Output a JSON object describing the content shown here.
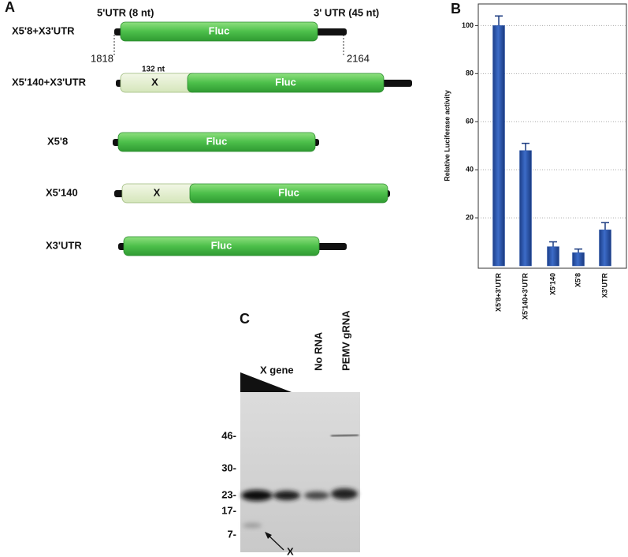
{
  "panel_a": {
    "letter": "A",
    "utr5": "5'UTR (8 nt)",
    "utr3": "3' UTR (45 nt)",
    "start": "1818",
    "end": "2164",
    "x_length": "132 nt",
    "constructs": [
      {
        "name": "X5'8+X3'UTR",
        "orf": "Fluc"
      },
      {
        "name": "X5'140+X3'UTR",
        "x": "X",
        "orf": "Fluc"
      },
      {
        "name": "X5'8",
        "orf": "Fluc"
      },
      {
        "name": "X5'140",
        "x": "X",
        "orf": "Fluc"
      },
      {
        "name": "X3'UTR",
        "orf": "Fluc"
      }
    ]
  },
  "panel_b": {
    "letter": "B"
  },
  "chart_data": {
    "type": "bar",
    "y_label": "Relative Luciferase activity",
    "categories": [
      "X5'8+3'UTR",
      "X5'140+3'UTR",
      "X5'140",
      "X5'8",
      "X3'UTR"
    ],
    "values": [
      100,
      48,
      8,
      5.5,
      15
    ],
    "errors": [
      4,
      3,
      2,
      1.5,
      3
    ],
    "ylim": [
      0,
      109
    ],
    "yticks": [
      20,
      40,
      60,
      80,
      100
    ],
    "grid": true,
    "color": "#2a55a8"
  },
  "panel_c": {
    "letter": "C",
    "lanes": [
      "X gene",
      "No RNA",
      "PEMV gRNA"
    ],
    "markers": [
      "46-",
      "30-",
      "23-",
      "17-",
      "7-"
    ],
    "arrow_label": "X"
  }
}
